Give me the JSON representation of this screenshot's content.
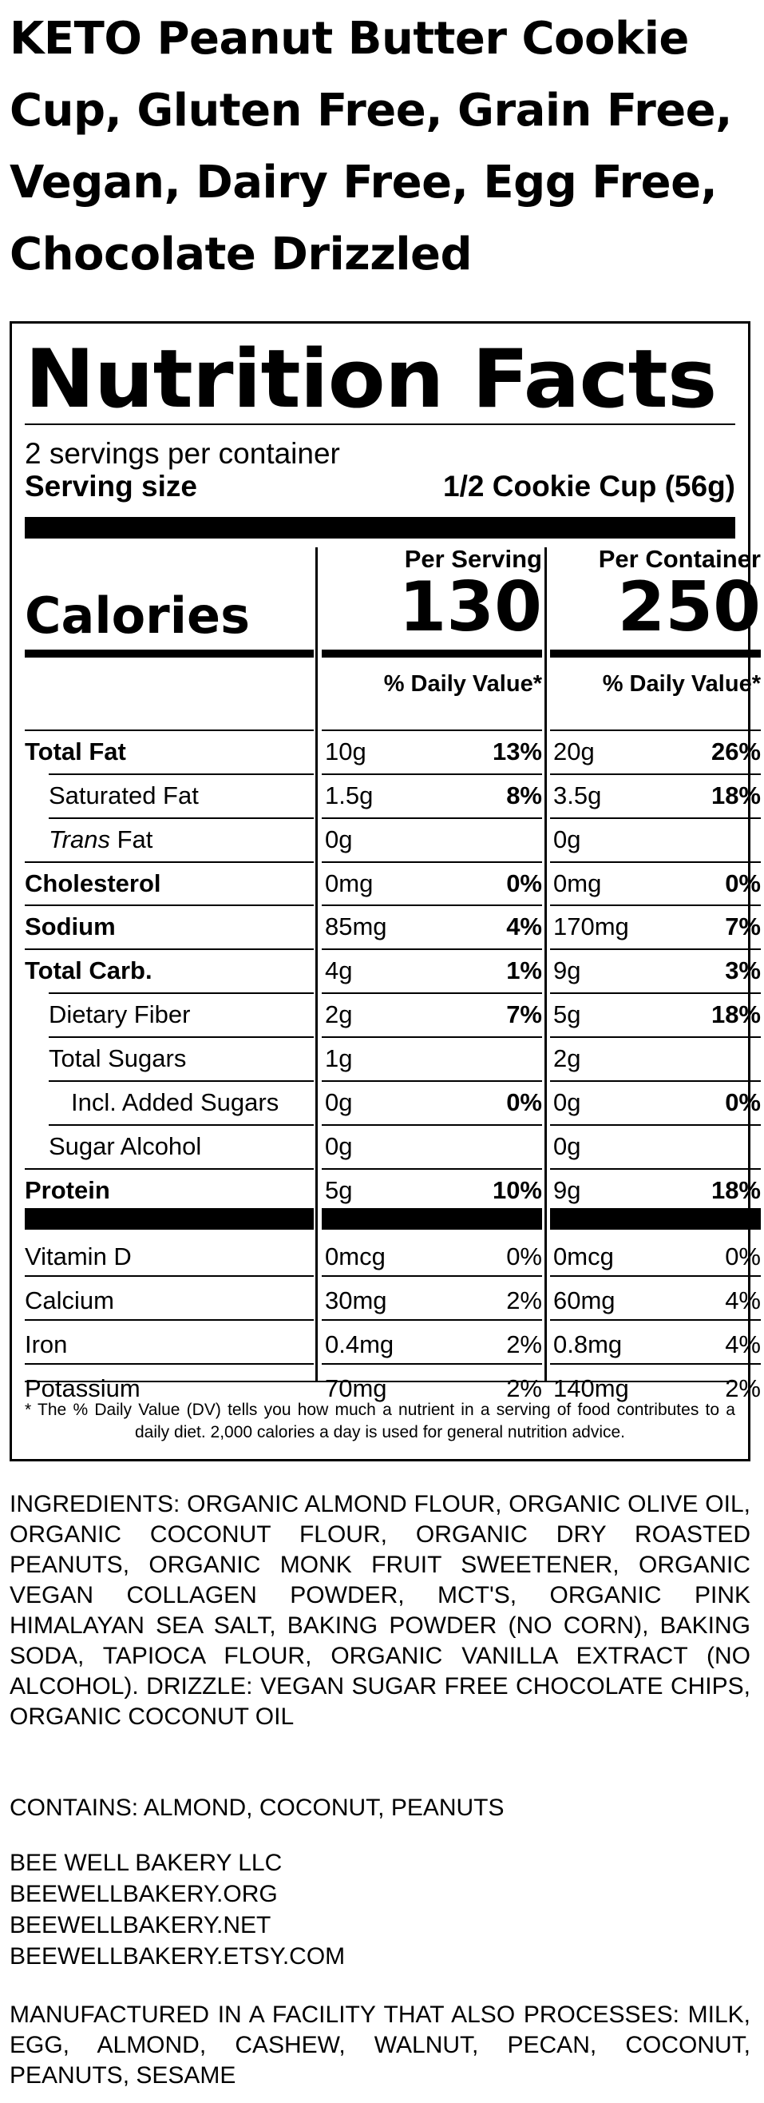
{
  "product": {
    "title": "KETO Peanut Butter Cookie Cup, Gluten Free, Grain Free, Vegan, Dairy Free, Egg Free, Chocolate Drizzled"
  },
  "nutrition": {
    "title": "Nutrition Facts",
    "servings_per_container": "2 servings per container",
    "serving_size_label": "Serving size",
    "serving_size_value": "1/2 Cookie Cup (56g)",
    "col_per_serving": "Per Serving",
    "col_per_container": "Per Container",
    "calories_label": "Calories",
    "calories_per_serving": "130",
    "calories_per_container": "250",
    "dv_header": "% Daily Value*",
    "nutrients": [
      {
        "label": "Total Fat",
        "s_amt": "10g",
        "s_dv": "13%",
        "c_amt": "20g",
        "c_dv": "26%"
      },
      {
        "label": "Saturated Fat",
        "s_amt": "1.5g",
        "s_dv": "8%",
        "c_amt": "3.5g",
        "c_dv": "18%"
      },
      {
        "label_italic": "Trans",
        "label_rest": " Fat",
        "s_amt": "0g",
        "s_dv": "",
        "c_amt": "0g",
        "c_dv": ""
      },
      {
        "label": "Cholesterol",
        "s_amt": "0mg",
        "s_dv": "0%",
        "c_amt": "0mg",
        "c_dv": "0%"
      },
      {
        "label": "Sodium",
        "s_amt": "85mg",
        "s_dv": "4%",
        "c_amt": "170mg",
        "c_dv": "7%"
      },
      {
        "label": "Total Carb.",
        "s_amt": "4g",
        "s_dv": "1%",
        "c_amt": "9g",
        "c_dv": "3%"
      },
      {
        "label": "Dietary Fiber",
        "s_amt": "2g",
        "s_dv": "7%",
        "c_amt": "5g",
        "c_dv": "18%"
      },
      {
        "label": "Total Sugars",
        "s_amt": "1g",
        "s_dv": "",
        "c_amt": "2g",
        "c_dv": ""
      },
      {
        "label": "Incl. Added Sugars",
        "s_amt": "0g",
        "s_dv": "0%",
        "c_amt": "0g",
        "c_dv": "0%"
      },
      {
        "label": "Sugar Alcohol",
        "s_amt": "0g",
        "s_dv": "",
        "c_amt": "0g",
        "c_dv": ""
      },
      {
        "label": "Protein",
        "s_amt": "5g",
        "s_dv": "10%",
        "c_amt": "9g",
        "c_dv": "18%"
      }
    ],
    "vitamins": [
      {
        "label": "Vitamin D",
        "s_amt": "0mcg",
        "s_dv": "0%",
        "c_amt": "0mcg",
        "c_dv": "0%"
      },
      {
        "label": "Calcium",
        "s_amt": "30mg",
        "s_dv": "2%",
        "c_amt": "60mg",
        "c_dv": "4%"
      },
      {
        "label": "Iron",
        "s_amt": "0.4mg",
        "s_dv": "2%",
        "c_amt": "0.8mg",
        "c_dv": "4%"
      },
      {
        "label": "Potassium",
        "s_amt": "70mg",
        "s_dv": "2%",
        "c_amt": "140mg",
        "c_dv": "2%"
      }
    ],
    "footnote": "* The % Daily Value (DV) tells you how much a nutrient in a serving of food contributes to a daily diet. 2,000 calories a day is used for general nutrition advice."
  },
  "ingredients": "INGREDIENTS: ORGANIC ALMOND FLOUR, ORGANIC OLIVE OIL, ORGANIC COCONUT FLOUR, ORGANIC DRY ROASTED PEANUTS, ORGANIC MONK FRUIT SWEETENER, ORGANIC VEGAN COLLAGEN POWDER, MCT'S, ORGANIC PINK HIMALAYAN SEA SALT, BAKING POWDER (NO CORN), BAKING SODA, TAPIOCA FLOUR, ORGANIC VANILLA EXTRACT (NO ALCOHOL). DRIZZLE: VEGAN SUGAR FREE CHOCOLATE CHIPS, ORGANIC COCONUT OIL",
  "contains": "CONTAINS: ALMOND, COCONUT, PEANUTS",
  "company": {
    "name": "BEE WELL BAKERY LLC",
    "links": [
      "BEEWELLBAKERY.ORG",
      "BEEWELLBAKERY.NET",
      "BEEWELLBAKERY.ETSY.COM"
    ]
  },
  "facility": "MANUFACTURED IN A FACILITY THAT ALSO PROCESSES: MILK, EGG, ALMOND, CASHEW, WALNUT, PECAN, COCONUT, PEANUTS, SESAME"
}
